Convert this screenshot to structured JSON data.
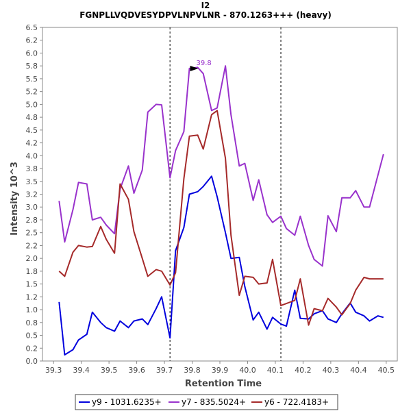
{
  "chart_data": {
    "type": "line",
    "title": "I2",
    "subtitle": "FGNPLLVQDVESYDPVLNPVLNR - 870.1263+++ (heavy)",
    "xlabel": "Retention Time",
    "ylabel": "Intensity  10^3",
    "xlim": [
      39.26,
      40.54
    ],
    "ylim": [
      0.0,
      6.5
    ],
    "x_ticks": [
      "39.3",
      "39.4",
      "39.5",
      "39.6",
      "39.7",
      "39.8",
      "39.9",
      "40.0",
      "40.1",
      "40.2",
      "40.3",
      "40.4",
      "40.5"
    ],
    "y_ticks": [
      "0.0",
      "0.2",
      "0.5",
      "0.8",
      "1.0",
      "1.2",
      "1.5",
      "1.8",
      "2.0",
      "2.2",
      "2.5",
      "2.8",
      "3.0",
      "3.2",
      "3.5",
      "3.8",
      "4.0",
      "4.2",
      "4.5",
      "4.8",
      "5.0",
      "5.2",
      "5.5",
      "5.8",
      "6.0",
      "6.2",
      "6.5"
    ],
    "grid": false,
    "legend_position": "bottom",
    "vlines": [
      39.72,
      40.12
    ],
    "annotation": {
      "label": "39.8",
      "x": 39.8,
      "y": 5.7,
      "color": "#9932cc"
    },
    "x": [
      39.32,
      39.34,
      39.37,
      39.39,
      39.42,
      39.44,
      39.47,
      39.49,
      39.52,
      39.54,
      39.57,
      39.59,
      39.62,
      39.64,
      39.67,
      39.69,
      39.72,
      39.74,
      39.77,
      39.79,
      39.82,
      39.84,
      39.87,
      39.89,
      39.92,
      39.94,
      39.97,
      39.99,
      40.02,
      40.04,
      40.07,
      40.09,
      40.12,
      40.14,
      40.17,
      40.19,
      40.22,
      40.24,
      40.27,
      40.29,
      40.32,
      40.34,
      40.37,
      40.39,
      40.42,
      40.44,
      40.47,
      40.49
    ],
    "series": [
      {
        "name": "y9 - 1031.6235+",
        "color": "#0000dd",
        "values": [
          1.15,
          0.12,
          0.22,
          0.41,
          0.52,
          0.95,
          0.75,
          0.65,
          0.58,
          0.78,
          0.65,
          0.78,
          0.82,
          0.71,
          1.02,
          1.25,
          0.45,
          2.15,
          2.6,
          3.25,
          3.3,
          3.4,
          3.6,
          3.2,
          2.5,
          2.0,
          2.02,
          1.45,
          0.8,
          0.95,
          0.62,
          0.85,
          0.72,
          0.68,
          1.38,
          0.83,
          0.82,
          0.92,
          0.98,
          0.82,
          0.75,
          0.92,
          1.13,
          0.95,
          0.88,
          0.78,
          0.88,
          0.85
        ]
      },
      {
        "name": "y7 - 835.5024+",
        "color": "#9932cc",
        "values": [
          3.12,
          2.32,
          2.95,
          3.48,
          3.45,
          2.75,
          2.8,
          2.65,
          2.48,
          3.35,
          3.8,
          3.27,
          3.72,
          4.85,
          5.0,
          4.99,
          3.57,
          4.1,
          4.47,
          5.7,
          5.72,
          5.6,
          4.88,
          4.93,
          5.75,
          4.8,
          3.8,
          3.85,
          3.13,
          3.53,
          2.85,
          2.7,
          2.82,
          2.58,
          2.45,
          2.82,
          2.25,
          1.98,
          1.85,
          2.83,
          2.52,
          3.18,
          3.18,
          3.32,
          3.0,
          3.0,
          3.62,
          4.03
        ]
      },
      {
        "name": "y6 - 722.4183+",
        "color": "#a52a2a",
        "values": [
          1.75,
          1.65,
          2.12,
          2.25,
          2.22,
          2.23,
          2.62,
          2.37,
          2.1,
          3.45,
          3.15,
          2.52,
          2.0,
          1.65,
          1.78,
          1.75,
          1.48,
          1.72,
          3.55,
          4.38,
          4.4,
          4.13,
          4.8,
          4.88,
          3.95,
          2.45,
          1.28,
          1.65,
          1.63,
          1.5,
          1.52,
          1.98,
          1.08,
          1.12,
          1.18,
          1.6,
          0.7,
          1.02,
          0.98,
          1.22,
          1.05,
          0.9,
          1.12,
          1.38,
          1.63,
          1.6,
          1.6,
          1.6
        ]
      }
    ]
  }
}
